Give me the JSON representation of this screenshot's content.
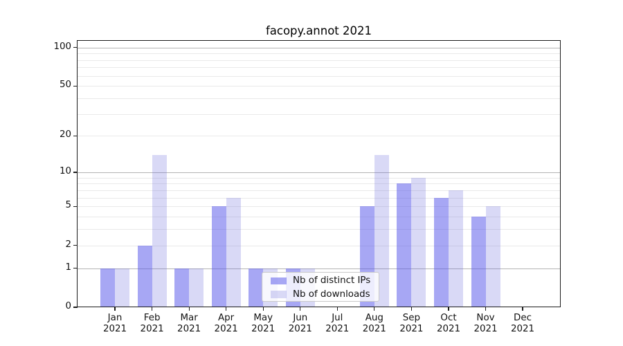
{
  "chart_data": {
    "type": "bar",
    "title": "facopy.annot 2021",
    "months": [
      "Jan",
      "Feb",
      "Mar",
      "Apr",
      "May",
      "Jun",
      "Jul",
      "Aug",
      "Sep",
      "Oct",
      "Nov",
      "Dec"
    ],
    "year": "2021",
    "series": [
      {
        "name": "Nb of distinct IPs",
        "color": "rgba(87,87,234,0.52)",
        "values": [
          1,
          2,
          1,
          5,
          1,
          1,
          0,
          5,
          8,
          6,
          4,
          0
        ]
      },
      {
        "name": "Nb of downloads",
        "color": "rgba(110,110,220,0.26)",
        "values": [
          1,
          14,
          1,
          6,
          1,
          1,
          0,
          14,
          9,
          7,
          5,
          0
        ]
      }
    ],
    "y_axis": {
      "scale": "log1p",
      "tick_values": [
        0,
        1,
        2,
        5,
        10,
        20,
        50,
        100
      ],
      "major_gridlines": [
        1,
        10,
        100
      ],
      "minor_gridlines": [
        2,
        3,
        4,
        5,
        6,
        7,
        8,
        9,
        20,
        30,
        40,
        50,
        60,
        70,
        80,
        90
      ],
      "top_value": 112
    },
    "legend": {
      "entries": [
        "Nb of distinct IPs",
        "Nb of downloads"
      ],
      "position": "lower center"
    },
    "colors": {
      "axis": "#1a1a1a",
      "major_grid": "#b3b3b3",
      "minor_grid": "#e9e9e9",
      "text": "#111111",
      "background": "#ffffff"
    }
  }
}
